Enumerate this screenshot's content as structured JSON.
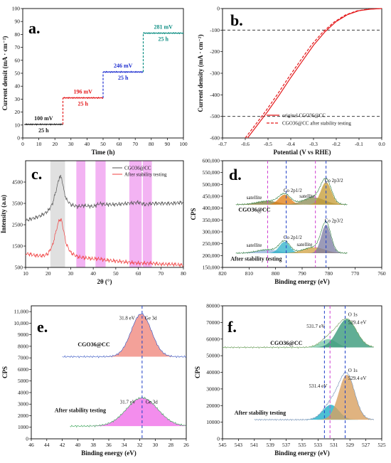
{
  "chart_data": [
    {
      "panel": "a.",
      "type": "line",
      "xlabel": "Time (h)",
      "ylabel": "Current densit (mA · cm⁻²)",
      "xlim": [
        0,
        100
      ],
      "ylim": [
        0,
        100
      ],
      "xticks": [
        "0",
        "10",
        "20",
        "30",
        "40",
        "50",
        "60",
        "70",
        "80",
        "90",
        "100"
      ],
      "yticks": [
        "0",
        "10",
        "20",
        "30",
        "40",
        "50",
        "60",
        "70",
        "80",
        "90",
        "100"
      ],
      "segments": [
        {
          "x": [
            1,
            25
          ],
          "y": 10.5,
          "color": "#1a1a1a",
          "overpotential": "100 mV",
          "duration": "25 h"
        },
        {
          "x": [
            25,
            50
          ],
          "y": 31,
          "color": "#e41a1c",
          "overpotential": "196 mV",
          "duration": "25 h"
        },
        {
          "x": [
            50,
            75
          ],
          "y": 51,
          "color": "#1f2fd0",
          "overpotential": "246 mV",
          "duration": "25 h"
        },
        {
          "x": [
            75,
            100
          ],
          "y": 81,
          "color": "#0e8f84",
          "overpotential": "281 mV",
          "duration": "25 h"
        }
      ]
    },
    {
      "panel": "b.",
      "type": "line",
      "xlabel": "Potential (V vs RHE)",
      "ylabel": "Current density (mA · cm⁻²)",
      "xlim": [
        -0.7,
        0.0
      ],
      "ylim": [
        -600,
        0
      ],
      "xticks": [
        "-0.7",
        "-0.6",
        "-0.5",
        "-0.4",
        "-0.3",
        "-0.2",
        "-0.1",
        "0.0"
      ],
      "yticks": [
        "0",
        "-100",
        "-200",
        "-300",
        "-400",
        "-500",
        "-600"
      ],
      "reference_lines": [
        -100,
        -500
      ],
      "series": [
        {
          "name": "original CGO36@CC",
          "style": "solid",
          "color": "#e41a1c",
          "x": [
            -0.59,
            -0.55,
            -0.5,
            -0.45,
            -0.4,
            -0.35,
            -0.3,
            -0.25,
            -0.2,
            -0.15,
            -0.1,
            -0.05,
            0
          ],
          "y": [
            -600,
            -545,
            -475,
            -400,
            -320,
            -245,
            -170,
            -108,
            -60,
            -28,
            -10,
            -3,
            0
          ]
        },
        {
          "name": "CGO36@CC after stability testing",
          "style": "dashed",
          "color": "#e41a1c",
          "x": [
            -0.6,
            -0.56,
            -0.51,
            -0.46,
            -0.41,
            -0.36,
            -0.31,
            -0.26,
            -0.21,
            -0.16,
            -0.11,
            -0.06,
            0
          ],
          "y": [
            -600,
            -545,
            -475,
            -400,
            -320,
            -245,
            -170,
            -110,
            -63,
            -30,
            -11,
            -3,
            0
          ]
        }
      ]
    },
    {
      "panel": "c.",
      "type": "line",
      "xlabel": "2θ (°)",
      "ylabel": "Intensity (a.u)",
      "xlim": [
        10,
        80
      ],
      "ylim": [
        500,
        5500
      ],
      "xticks": [
        "10",
        "20",
        "30",
        "40",
        "50",
        "60",
        "70",
        "80"
      ],
      "yticks": [
        "500",
        "1500",
        "2500",
        "3500",
        "4500"
      ],
      "y_tick_values": [
        500,
        1500,
        2500,
        3500,
        4500
      ],
      "highlight_bands": [
        [
          21,
          27.5
        ],
        [
          32.5,
          36.5
        ],
        [
          41,
          45.5
        ],
        [
          56,
          61.5
        ],
        [
          62,
          66
        ]
      ],
      "series": [
        {
          "name": "CGO36@CC",
          "color": "#555555",
          "x": [
            10,
            15,
            18,
            20,
            22,
            24,
            25,
            26,
            27,
            28,
            30,
            33,
            36,
            40,
            43,
            45,
            50,
            55,
            60,
            63,
            66,
            70,
            75,
            80
          ],
          "y": [
            2700,
            2850,
            3000,
            3150,
            3500,
            4300,
            4750,
            4700,
            4100,
            3700,
            3450,
            3350,
            3400,
            3350,
            3500,
            3450,
            3450,
            3500,
            3550,
            3450,
            3500,
            3500,
            3500,
            3550
          ]
        },
        {
          "name": "After stability testing",
          "color": "#f04040",
          "x": [
            10,
            15,
            18,
            20,
            22,
            24,
            25,
            26,
            27,
            28,
            30,
            33,
            36,
            40,
            43,
            45,
            50,
            55,
            60,
            63,
            66,
            70,
            75,
            80
          ],
          "y": [
            1150,
            1050,
            1050,
            1150,
            1550,
            2400,
            2750,
            2700,
            2150,
            1600,
            1200,
            1000,
            950,
            900,
            900,
            850,
            800,
            750,
            700,
            700,
            700,
            650,
            650,
            600
          ]
        }
      ]
    },
    {
      "panel": "d.",
      "type": "area",
      "xlabel": "Binding energy (eV)",
      "ylabel": "CPS",
      "xlim": [
        820,
        760
      ],
      "ylim": [
        150000,
        600000
      ],
      "xticks": [
        "820",
        "810",
        "800",
        "790",
        "780",
        "770",
        "760"
      ],
      "yticks": [
        "150,000",
        "200,000",
        "250,000",
        "300,000",
        "350,000",
        "400,000",
        "450,000",
        "500,000",
        "550,000",
        "600,000"
      ],
      "y_tick_values": [
        150000,
        200000,
        250000,
        300000,
        350000,
        400000,
        450000,
        500000,
        550000,
        600000
      ],
      "reference_lines_x": [
        803,
        796,
        785,
        781
      ],
      "spectra": [
        {
          "name": "CGO36@CC",
          "baseline": 415000,
          "range": [
            815,
            773
          ],
          "peaks": [
            {
              "center": 803,
              "height": 15000,
              "width": 4,
              "color": "#7a7a3a",
              "label": "satellite"
            },
            {
              "center": 796.6,
              "height": 42000,
              "width": 2.2,
              "color": "#e07b10",
              "label": "Co 2p1/2"
            },
            {
              "center": 785.5,
              "height": 30000,
              "width": 4,
              "color": "#8a8a50",
              "label": "satellite"
            },
            {
              "center": 781,
              "height": 95000,
              "width": 2,
              "color": "#c49a30",
              "label": "Co 2p3/2"
            }
          ]
        },
        {
          "name": "After stability testing",
          "baseline": 210000,
          "range": [
            815,
            773
          ],
          "peaks": [
            {
              "center": 803,
              "height": 15000,
              "width": 4,
              "color": "#8fb0d8",
              "label": "satellite"
            },
            {
              "center": 796.6,
              "height": 48000,
              "width": 2,
              "color": "#2ab0c8",
              "label": "Co 2p1/2"
            },
            {
              "center": 785.5,
              "height": 25000,
              "width": 4,
              "color": "#d0a040",
              "label": "satellite"
            },
            {
              "center": 781,
              "height": 120000,
              "width": 1.8,
              "color": "#7a7aa0",
              "label": "Co 2p3/2"
            }
          ]
        }
      ],
      "annotations": [
        "satellite",
        "Co 2p1/2",
        "satellite",
        "Co 2p3/2",
        "CGO36@CC",
        "satellite",
        "Co 2p1/2",
        "satellite",
        "Co 2p3/2",
        "After stability testing"
      ]
    },
    {
      "panel": "e.",
      "type": "area",
      "xlabel": "Binding energy (eV)",
      "ylabel": "CPS",
      "xlim": [
        46,
        26
      ],
      "ylim": [
        0,
        11500
      ],
      "xticks": [
        "46",
        "44",
        "42",
        "40",
        "38",
        "36",
        "34",
        "32",
        "30",
        "28",
        "26"
      ],
      "yticks": [
        "0",
        "1000",
        "2000",
        "3000",
        "4000",
        "5000",
        "6000",
        "7000",
        "8000",
        "9000",
        "10,000",
        "11,000"
      ],
      "y_tick_values": [
        0,
        1000,
        2000,
        3000,
        4000,
        5000,
        6000,
        7000,
        8000,
        9000,
        10000,
        11000
      ],
      "reference_lines_x": [
        31.7
      ],
      "spectra": [
        {
          "name": "CGO36@CC",
          "baseline": 7100,
          "peak_center": 31.8,
          "peak_height": 3700,
          "width": 1.3,
          "color": "#f08a80",
          "peak_label": "31.8 eV",
          "orbital": "Ge 3d",
          "range": [
            42,
            26
          ]
        },
        {
          "name": "After stability testing",
          "baseline": 1100,
          "peak_center": 31.7,
          "peak_height": 2450,
          "width": 2.0,
          "color": "#f070e8",
          "peak_label": "31.7 eV",
          "orbital": "Ge 3d",
          "range": [
            41,
            26
          ]
        }
      ]
    },
    {
      "panel": "f.",
      "type": "area",
      "xlabel": "Binding energy (eV)",
      "ylabel": "CPS",
      "xlim": [
        545,
        525
      ],
      "ylim": [
        0,
        80000
      ],
      "xticks": [
        "545",
        "543",
        "541",
        "539",
        "537",
        "535",
        "533",
        "531",
        "529",
        "527",
        "525"
      ],
      "yticks": [
        "0",
        "10000",
        "20000",
        "30000",
        "40000",
        "50000",
        "60000",
        "70000",
        "80000"
      ],
      "y_tick_values": [
        0,
        10000,
        20000,
        30000,
        40000,
        50000,
        60000,
        70000,
        80000
      ],
      "reference_lines_x": [
        532.2,
        531.5,
        529.6
      ],
      "spectra": [
        {
          "name": "CGO36@CC",
          "baseline": 55000,
          "range": [
            545,
            526
          ],
          "peaks": [
            {
              "center": 531.7,
              "height": 5000,
              "width": 1.0,
              "color": "#7ac8a8",
              "label": "531.7 eV"
            },
            {
              "center": 529.4,
              "height": 17000,
              "width": 1.2,
              "color": "#3a9a7a",
              "label": "529.4 eV",
              "orbital": "O 1s"
            }
          ]
        },
        {
          "name": "After stability testing",
          "baseline": 11500,
          "range": [
            541,
            526
          ],
          "peaks": [
            {
              "center": 531.4,
              "height": 9000,
              "width": 1.0,
              "color": "#20b0c8",
              "label": "531.4 eV"
            },
            {
              "center": 529.4,
              "height": 27000,
              "width": 1.0,
              "color": "#d8a060",
              "label": "529.4 eV",
              "orbital": "O 1s"
            }
          ]
        }
      ]
    }
  ]
}
